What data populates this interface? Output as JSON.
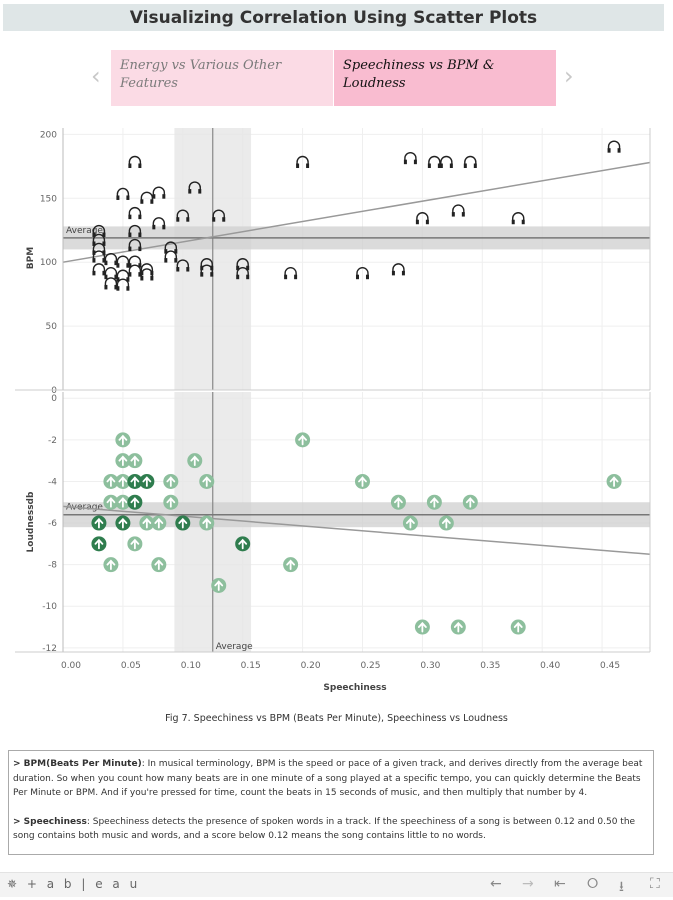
{
  "header": {
    "title": "Visualizing Correlation Using Scatter Plots"
  },
  "carousel": {
    "prev_icon": "chevron-left-icon",
    "next_icon": "chevron-right-icon",
    "tabs": [
      {
        "label": "Energy vs Various Other Features",
        "selected": false
      },
      {
        "label": "Speechiness vs BPM & Loudness",
        "selected": true
      }
    ]
  },
  "chart_data": [
    {
      "type": "scatter",
      "ylabel": "BPM",
      "xlabel": "Speechiness",
      "xlim": [
        0,
        0.49
      ],
      "ylim": [
        0,
        205
      ],
      "x_ticks": [
        "0.00",
        "0.05",
        "0.10",
        "0.15",
        "0.20",
        "0.25",
        "0.30",
        "0.35",
        "0.40",
        "0.45"
      ],
      "y_ticks": [
        "0",
        "50",
        "100",
        "150",
        "200"
      ],
      "marker": "headphones-icon",
      "grid": true,
      "reference_lines": {
        "y_average": 119,
        "y_band": [
          110,
          128
        ],
        "x_average": 0.125,
        "x_band": [
          0.093,
          0.157
        ],
        "label": "Average"
      },
      "trend_line": {
        "x": [
          0,
          0.49
        ],
        "y": [
          100,
          178
        ]
      },
      "points": [
        [
          0.06,
          178
        ],
        [
          0.05,
          153
        ],
        [
          0.07,
          150
        ],
        [
          0.08,
          154
        ],
        [
          0.11,
          158
        ],
        [
          0.2,
          178
        ],
        [
          0.06,
          138
        ],
        [
          0.1,
          136
        ],
        [
          0.13,
          136
        ],
        [
          0.08,
          130
        ],
        [
          0.06,
          124
        ],
        [
          0.06,
          113
        ],
        [
          0.03,
          124
        ],
        [
          0.03,
          117
        ],
        [
          0.03,
          110
        ],
        [
          0.03,
          104
        ],
        [
          0.03,
          94
        ],
        [
          0.09,
          111
        ],
        [
          0.09,
          104
        ],
        [
          0.04,
          102
        ],
        [
          0.04,
          91
        ],
        [
          0.04,
          83
        ],
        [
          0.05,
          100
        ],
        [
          0.05,
          89
        ],
        [
          0.05,
          82
        ],
        [
          0.06,
          100
        ],
        [
          0.06,
          93
        ],
        [
          0.07,
          94
        ],
        [
          0.07,
          90
        ],
        [
          0.1,
          97
        ],
        [
          0.12,
          98
        ],
        [
          0.12,
          93
        ],
        [
          0.15,
          98
        ],
        [
          0.15,
          91
        ],
        [
          0.19,
          91
        ],
        [
          0.29,
          181
        ],
        [
          0.31,
          178
        ],
        [
          0.32,
          178
        ],
        [
          0.34,
          178
        ],
        [
          0.46,
          190
        ],
        [
          0.3,
          134
        ],
        [
          0.33,
          140
        ],
        [
          0.38,
          134
        ],
        [
          0.25,
          91
        ],
        [
          0.28,
          94
        ]
      ]
    },
    {
      "type": "scatter",
      "ylabel": "Loudnessdb",
      "xlabel": "Speechiness",
      "xlim": [
        0,
        0.49
      ],
      "ylim": [
        -12.2,
        0.3
      ],
      "x_ticks": [
        "0.00",
        "0.05",
        "0.10",
        "0.15",
        "0.20",
        "0.25",
        "0.30",
        "0.35",
        "0.40",
        "0.45"
      ],
      "y_ticks": [
        "0",
        "-2",
        "-4",
        "-6",
        "-8",
        "-10",
        "-12"
      ],
      "marker": "arrow-up-circle-icon",
      "colors": {
        "light": "#8dbf9d",
        "dark": "#2f7d4e"
      },
      "grid": true,
      "reference_lines": {
        "y_average": -5.6,
        "y_band": [
          -5.0,
          -6.2
        ],
        "x_average": 0.125,
        "x_band": [
          0.093,
          0.157
        ],
        "label": "Average"
      },
      "trend_line": {
        "x": [
          0,
          0.49
        ],
        "y": [
          -5.2,
          -7.5
        ]
      },
      "points": [
        {
          "x": 0.05,
          "y": -2
        },
        {
          "x": 0.05,
          "y": -3
        },
        {
          "x": 0.06,
          "y": -3
        },
        {
          "x": 0.11,
          "y": -3
        },
        {
          "x": 0.2,
          "y": -2
        },
        {
          "x": 0.04,
          "y": -4
        },
        {
          "x": 0.05,
          "y": -4
        },
        {
          "x": 0.06,
          "y": -4,
          "dark": true
        },
        {
          "x": 0.07,
          "y": -4,
          "dark": true
        },
        {
          "x": 0.09,
          "y": -4
        },
        {
          "x": 0.12,
          "y": -4
        },
        {
          "x": 0.04,
          "y": -5
        },
        {
          "x": 0.05,
          "y": -5
        },
        {
          "x": 0.06,
          "y": -5,
          "dark": true
        },
        {
          "x": 0.09,
          "y": -5
        },
        {
          "x": 0.03,
          "y": -6,
          "dark": true
        },
        {
          "x": 0.05,
          "y": -6,
          "dark": true
        },
        {
          "x": 0.07,
          "y": -6
        },
        {
          "x": 0.08,
          "y": -6
        },
        {
          "x": 0.1,
          "y": -6,
          "dark": true
        },
        {
          "x": 0.12,
          "y": -6
        },
        {
          "x": 0.03,
          "y": -7,
          "dark": true
        },
        {
          "x": 0.06,
          "y": -7
        },
        {
          "x": 0.15,
          "y": -7,
          "dark": true
        },
        {
          "x": 0.04,
          "y": -8
        },
        {
          "x": 0.08,
          "y": -8
        },
        {
          "x": 0.19,
          "y": -8
        },
        {
          "x": 0.13,
          "y": -9
        },
        {
          "x": 0.25,
          "y": -4
        },
        {
          "x": 0.28,
          "y": -5
        },
        {
          "x": 0.29,
          "y": -6
        },
        {
          "x": 0.31,
          "y": -5
        },
        {
          "x": 0.32,
          "y": -6
        },
        {
          "x": 0.34,
          "y": -5
        },
        {
          "x": 0.46,
          "y": -4
        },
        {
          "x": 0.3,
          "y": -11
        },
        {
          "x": 0.33,
          "y": -11
        },
        {
          "x": 0.38,
          "y": -11
        }
      ]
    }
  ],
  "caption": "Fig 7. Speechiness vs BPM (Beats Per Minute), Speechiness vs Loudness",
  "description": {
    "bpm_term": "> BPM(Beats Per Minute)",
    "bpm_text": ": In musical terminology, BPM is the speed or pace of a given track, and derives directly from the average beat duration. So when you count how many beats are in one minute of a song played at a specific tempo, you can quickly determine the Beats Per Minute or BPM. And if you're pressed for time, count the beats in 15 seconds of music, and then multiply that number by 4.",
    "speech_term": "> Speechiness",
    "speech_text": ": Speechiness detects the presence of spoken words in a track. If the speechiness of a song is between 0.12 and 0.50 the song contains both music and words, and a score below 0.12 means the song contains little to no words."
  },
  "footer": {
    "logo": "+ a b | e a u",
    "icons": [
      "undo-icon",
      "redo-icon",
      "revert-icon",
      "share-icon",
      "download-icon",
      "fullscreen-icon"
    ]
  }
}
